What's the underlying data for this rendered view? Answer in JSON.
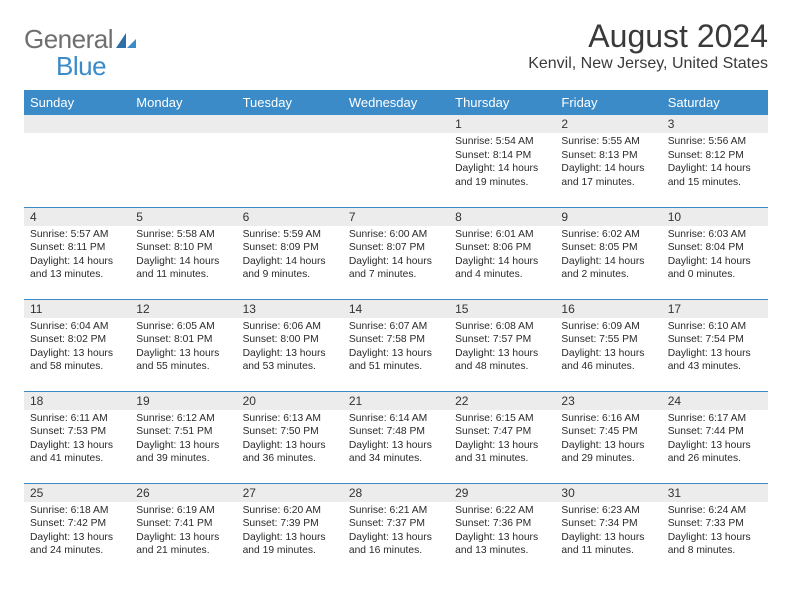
{
  "logo": {
    "part1": "General",
    "part2": "Blue"
  },
  "title": "August 2024",
  "subtitle": "Kenvil, New Jersey, United States",
  "colors": {
    "header_bg": "#3b8bc9",
    "header_text": "#ffffff",
    "daynum_bg": "#ececec",
    "rule": "#3b8bc9",
    "logo_gray": "#6f6f6f",
    "logo_blue": "#3b8bc9"
  },
  "weekdays": [
    "Sunday",
    "Monday",
    "Tuesday",
    "Wednesday",
    "Thursday",
    "Friday",
    "Saturday"
  ],
  "weeks": [
    [
      null,
      null,
      null,
      null,
      {
        "n": "1",
        "sr": "5:54 AM",
        "ss": "8:14 PM",
        "dl": "14 hours and 19 minutes."
      },
      {
        "n": "2",
        "sr": "5:55 AM",
        "ss": "8:13 PM",
        "dl": "14 hours and 17 minutes."
      },
      {
        "n": "3",
        "sr": "5:56 AM",
        "ss": "8:12 PM",
        "dl": "14 hours and 15 minutes."
      }
    ],
    [
      {
        "n": "4",
        "sr": "5:57 AM",
        "ss": "8:11 PM",
        "dl": "14 hours and 13 minutes."
      },
      {
        "n": "5",
        "sr": "5:58 AM",
        "ss": "8:10 PM",
        "dl": "14 hours and 11 minutes."
      },
      {
        "n": "6",
        "sr": "5:59 AM",
        "ss": "8:09 PM",
        "dl": "14 hours and 9 minutes."
      },
      {
        "n": "7",
        "sr": "6:00 AM",
        "ss": "8:07 PM",
        "dl": "14 hours and 7 minutes."
      },
      {
        "n": "8",
        "sr": "6:01 AM",
        "ss": "8:06 PM",
        "dl": "14 hours and 4 minutes."
      },
      {
        "n": "9",
        "sr": "6:02 AM",
        "ss": "8:05 PM",
        "dl": "14 hours and 2 minutes."
      },
      {
        "n": "10",
        "sr": "6:03 AM",
        "ss": "8:04 PM",
        "dl": "14 hours and 0 minutes."
      }
    ],
    [
      {
        "n": "11",
        "sr": "6:04 AM",
        "ss": "8:02 PM",
        "dl": "13 hours and 58 minutes."
      },
      {
        "n": "12",
        "sr": "6:05 AM",
        "ss": "8:01 PM",
        "dl": "13 hours and 55 minutes."
      },
      {
        "n": "13",
        "sr": "6:06 AM",
        "ss": "8:00 PM",
        "dl": "13 hours and 53 minutes."
      },
      {
        "n": "14",
        "sr": "6:07 AM",
        "ss": "7:58 PM",
        "dl": "13 hours and 51 minutes."
      },
      {
        "n": "15",
        "sr": "6:08 AM",
        "ss": "7:57 PM",
        "dl": "13 hours and 48 minutes."
      },
      {
        "n": "16",
        "sr": "6:09 AM",
        "ss": "7:55 PM",
        "dl": "13 hours and 46 minutes."
      },
      {
        "n": "17",
        "sr": "6:10 AM",
        "ss": "7:54 PM",
        "dl": "13 hours and 43 minutes."
      }
    ],
    [
      {
        "n": "18",
        "sr": "6:11 AM",
        "ss": "7:53 PM",
        "dl": "13 hours and 41 minutes."
      },
      {
        "n": "19",
        "sr": "6:12 AM",
        "ss": "7:51 PM",
        "dl": "13 hours and 39 minutes."
      },
      {
        "n": "20",
        "sr": "6:13 AM",
        "ss": "7:50 PM",
        "dl": "13 hours and 36 minutes."
      },
      {
        "n": "21",
        "sr": "6:14 AM",
        "ss": "7:48 PM",
        "dl": "13 hours and 34 minutes."
      },
      {
        "n": "22",
        "sr": "6:15 AM",
        "ss": "7:47 PM",
        "dl": "13 hours and 31 minutes."
      },
      {
        "n": "23",
        "sr": "6:16 AM",
        "ss": "7:45 PM",
        "dl": "13 hours and 29 minutes."
      },
      {
        "n": "24",
        "sr": "6:17 AM",
        "ss": "7:44 PM",
        "dl": "13 hours and 26 minutes."
      }
    ],
    [
      {
        "n": "25",
        "sr": "6:18 AM",
        "ss": "7:42 PM",
        "dl": "13 hours and 24 minutes."
      },
      {
        "n": "26",
        "sr": "6:19 AM",
        "ss": "7:41 PM",
        "dl": "13 hours and 21 minutes."
      },
      {
        "n": "27",
        "sr": "6:20 AM",
        "ss": "7:39 PM",
        "dl": "13 hours and 19 minutes."
      },
      {
        "n": "28",
        "sr": "6:21 AM",
        "ss": "7:37 PM",
        "dl": "13 hours and 16 minutes."
      },
      {
        "n": "29",
        "sr": "6:22 AM",
        "ss": "7:36 PM",
        "dl": "13 hours and 13 minutes."
      },
      {
        "n": "30",
        "sr": "6:23 AM",
        "ss": "7:34 PM",
        "dl": "13 hours and 11 minutes."
      },
      {
        "n": "31",
        "sr": "6:24 AM",
        "ss": "7:33 PM",
        "dl": "13 hours and 8 minutes."
      }
    ]
  ],
  "labels": {
    "sunrise": "Sunrise: ",
    "sunset": "Sunset: ",
    "daylight": "Daylight: "
  }
}
